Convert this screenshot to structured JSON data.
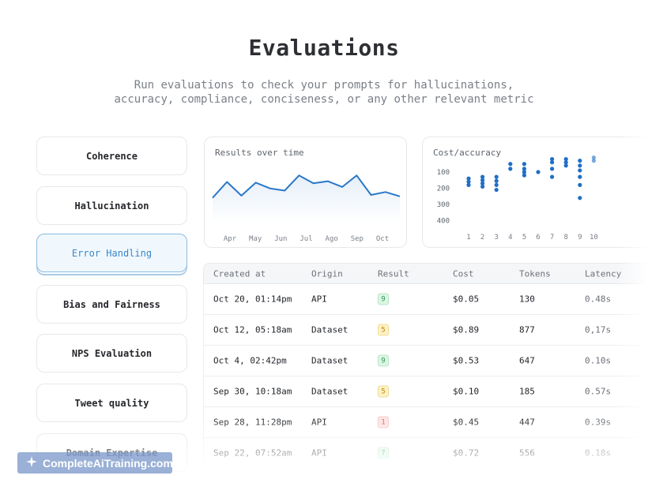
{
  "header": {
    "title": "Evaluations",
    "subtitle_line1": "Run evaluations to check your prompts for hallucinations,",
    "subtitle_line2": "accuracy, compliance, conciseness, or any other relevant metric"
  },
  "sidebar": {
    "items": [
      {
        "label": "Coherence",
        "active": false
      },
      {
        "label": "Hallucination",
        "active": false
      },
      {
        "label": "Error Handling",
        "active": true
      },
      {
        "label": "Bias and Fairness",
        "active": false
      },
      {
        "label": "NPS Evaluation",
        "active": false
      },
      {
        "label": "Tweet quality",
        "active": false
      },
      {
        "label": "Domain Expertise",
        "active": false
      }
    ]
  },
  "results_card": {
    "title": "Results over time"
  },
  "cost_card": {
    "title": "Cost/accuracy"
  },
  "chart_data": [
    {
      "type": "line",
      "title": "Results over time",
      "x_labels": [
        "Apr",
        "May",
        "Jun",
        "Jul",
        "Ago",
        "Sep",
        "Oct"
      ],
      "values": [
        20,
        42,
        23,
        41,
        33,
        30,
        51,
        40,
        43,
        35,
        51,
        24,
        28,
        22
      ],
      "ylim": [
        0,
        60
      ],
      "color": "#2a78c8"
    },
    {
      "type": "scatter",
      "title": "Cost/accuracy",
      "y_ticks": [
        100,
        200,
        300,
        400
      ],
      "x_ticks": [
        1,
        2,
        3,
        4,
        5,
        6,
        7,
        8,
        9,
        10
      ],
      "xlim": [
        0.5,
        10.5
      ],
      "ylim": [
        30,
        440
      ],
      "points": [
        [
          1,
          140
        ],
        [
          1,
          160
        ],
        [
          1,
          180
        ],
        [
          2,
          130
        ],
        [
          2,
          150
        ],
        [
          2,
          170
        ],
        [
          2,
          190
        ],
        [
          3,
          130
        ],
        [
          3,
          155
        ],
        [
          3,
          180
        ],
        [
          3,
          210
        ],
        [
          4,
          80
        ],
        [
          4,
          50
        ],
        [
          5,
          50
        ],
        [
          5,
          80
        ],
        [
          5,
          100
        ],
        [
          5,
          120
        ],
        [
          6,
          100
        ],
        [
          7,
          80
        ],
        [
          7,
          130
        ],
        [
          7,
          20
        ],
        [
          7,
          40
        ],
        [
          8,
          20
        ],
        [
          8,
          40
        ],
        [
          8,
          60
        ],
        [
          9,
          30
        ],
        [
          9,
          60
        ],
        [
          9,
          90
        ],
        [
          9,
          130
        ],
        [
          9,
          180
        ],
        [
          9,
          260
        ],
        [
          10,
          30
        ],
        [
          10,
          10
        ]
      ],
      "color": "#1f6fc6"
    }
  ],
  "table": {
    "columns": [
      "Created at",
      "Origin",
      "Result",
      "Cost",
      "Tokens",
      "Latency"
    ],
    "rows": [
      {
        "created": "Oct 20, 01:14pm",
        "origin": "API",
        "result": "9",
        "result_color": "green",
        "cost": "$0.05",
        "tokens": "130",
        "latency": "0.48s"
      },
      {
        "created": "Oct 12, 05:18am",
        "origin": "Dataset",
        "result": "5",
        "result_color": "yellow",
        "cost": "$0.89",
        "tokens": "877",
        "latency": "0,17s"
      },
      {
        "created": "Oct 4, 02:42pm",
        "origin": "Dataset",
        "result": "9",
        "result_color": "green",
        "cost": "$0.53",
        "tokens": "647",
        "latency": "0.10s"
      },
      {
        "created": "Sep 30, 10:18am",
        "origin": "Dataset",
        "result": "5",
        "result_color": "yellow",
        "cost": "$0.10",
        "tokens": "185",
        "latency": "0.57s"
      },
      {
        "created": "Sep 28, 11:28pm",
        "origin": "API",
        "result": "1",
        "result_color": "red",
        "cost": "$0.45",
        "tokens": "447",
        "latency": "0.39s"
      },
      {
        "created": "Sep 22, 07:52am",
        "origin": "API",
        "result": "7",
        "result_color": "green",
        "cost": "$0.72",
        "tokens": "556",
        "latency": "0.18s"
      }
    ]
  },
  "watermark": {
    "text": "CompleteAiTraining.com"
  }
}
